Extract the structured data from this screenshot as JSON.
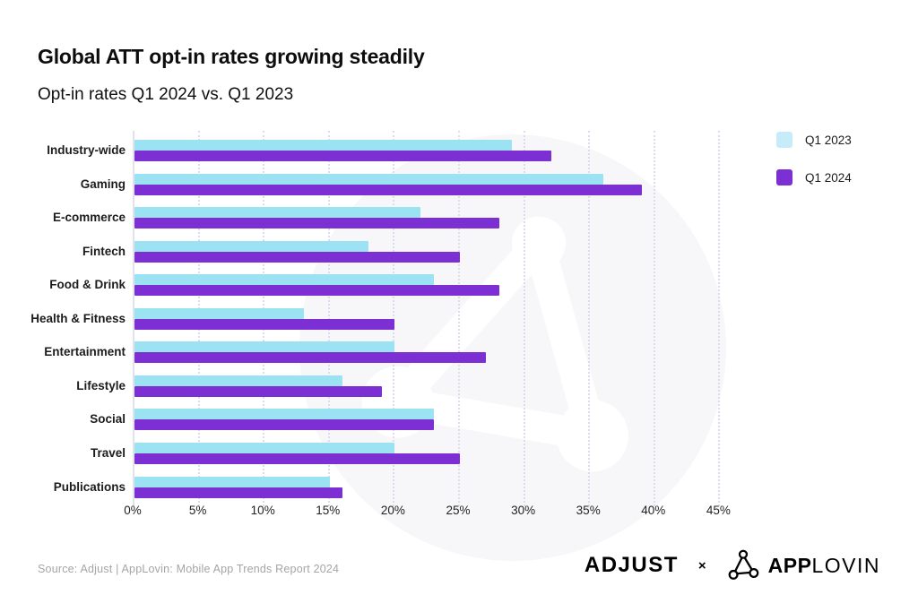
{
  "title": "Global ATT opt-in rates growing steadily",
  "subtitle": "Opt-in rates Q1 2024 vs. Q1 2023",
  "chart_data": {
    "type": "bar",
    "orientation": "horizontal",
    "title": "Global ATT opt-in rates growing steadily",
    "subtitle": "Opt-in rates Q1 2024 vs. Q1 2023",
    "categories": [
      "Industry-wide",
      "Gaming",
      "E-commerce",
      "Fintech",
      "Food & Drink",
      "Health & Fitness",
      "Entertainment",
      "Lifestyle",
      "Social",
      "Travel",
      "Publications"
    ],
    "series": [
      {
        "name": "Q1 2023",
        "color": "#9be3f3",
        "legend_color": "#c7ecf9",
        "values": [
          29,
          36,
          22,
          18,
          23,
          13,
          20,
          16,
          23,
          20,
          15
        ]
      },
      {
        "name": "Q1 2024",
        "color": "#7c2fd2",
        "legend_color": "#7c2fd2",
        "values": [
          32,
          39,
          28,
          25,
          28,
          20,
          27,
          19,
          23,
          25,
          16
        ]
      }
    ],
    "xlabel": "",
    "ylabel": "",
    "x_ticks": [
      "0%",
      "5%",
      "10%",
      "15%",
      "20%",
      "25%",
      "30%",
      "35%",
      "40%",
      "45%"
    ],
    "xlim": [
      0,
      45
    ],
    "grid": "vertical-dotted",
    "legend_position": "top-right",
    "value_unit": "%"
  },
  "legend": [
    {
      "label": "Q1 2023",
      "color": "#c7ecf9"
    },
    {
      "label": "Q1 2024",
      "color": "#7c2fd2"
    }
  ],
  "footer": {
    "source": "Source: Adjust | AppLovin: Mobile App Trends Report 2024",
    "brand_adjust": "ADJUST",
    "brand_separator": "×",
    "brand_app": "APP",
    "brand_lovin": "LOVIN"
  },
  "colors": {
    "q1_2023_bar": "#9be3f3",
    "q1_2024_bar": "#7c2fd2",
    "gridline": "#dcdcf0",
    "watermark": "#f7f7fa",
    "source_text": "#a5a5a5"
  }
}
